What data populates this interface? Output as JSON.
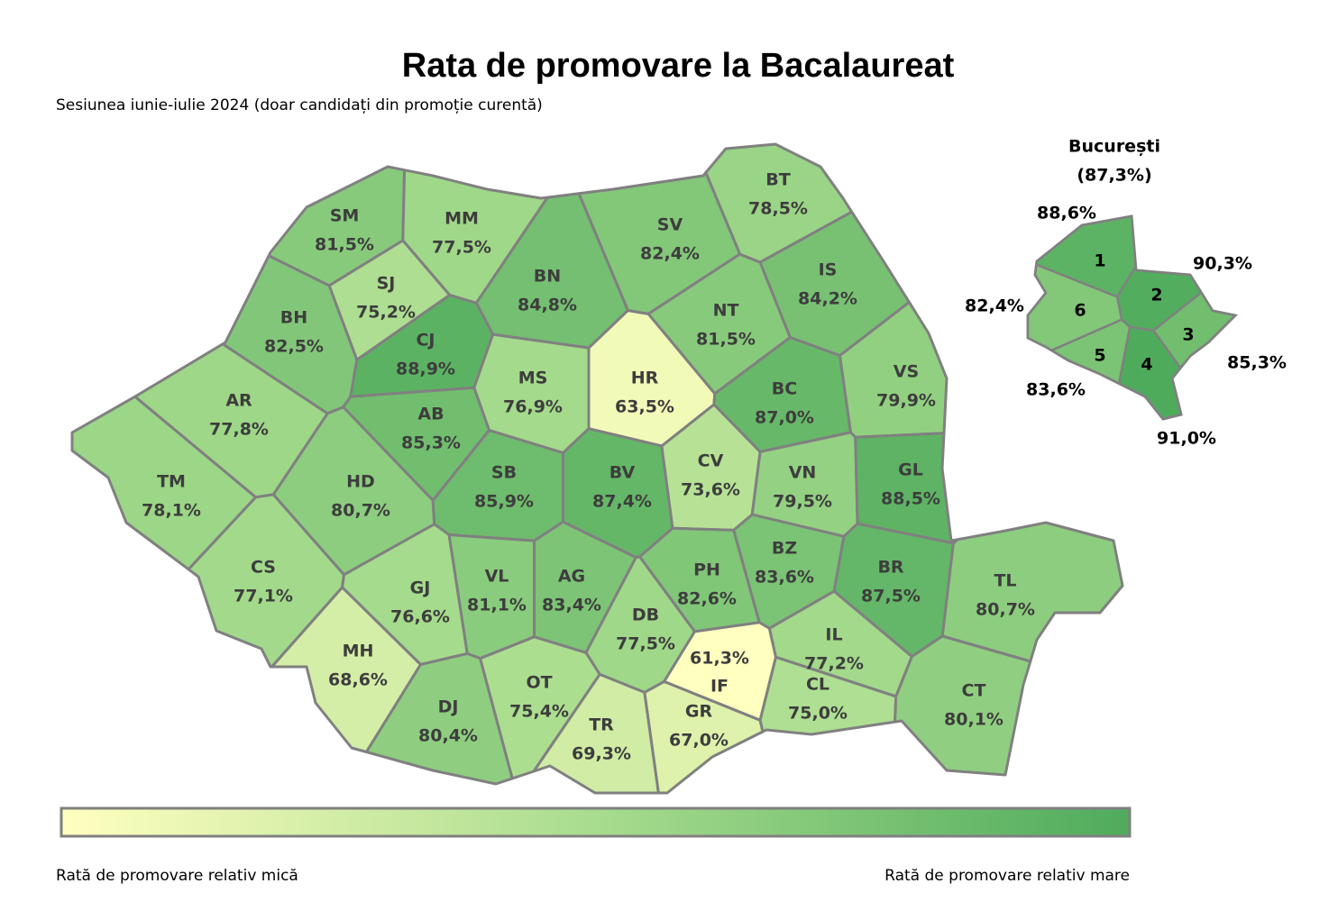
{
  "chart_data": {
    "type": "map",
    "title": "Rata de promovare la Bacalaureat",
    "subtitle": "Sesiunea iunie-iulie 2024 (doar candidați din promoție curentă)",
    "regions": [
      "SM",
      "MM",
      "BT",
      "SV",
      "SJ",
      "BN",
      "IS",
      "BH",
      "CJ",
      "NT",
      "MS",
      "HR",
      "BC",
      "VS",
      "AR",
      "AB",
      "TM",
      "HD",
      "SB",
      "BV",
      "CV",
      "VN",
      "GL",
      "CS",
      "GJ",
      "VL",
      "AG",
      "PH",
      "BZ",
      "BR",
      "TL",
      "DB",
      "MH",
      "IF",
      "IL",
      "DJ",
      "OT",
      "TR",
      "GR",
      "CL",
      "CT"
    ],
    "values": [
      81.5,
      77.5,
      78.5,
      82.4,
      75.2,
      84.8,
      84.2,
      82.5,
      88.9,
      81.5,
      76.9,
      63.5,
      87.0,
      79.9,
      77.8,
      85.3,
      78.1,
      80.7,
      85.9,
      87.4,
      73.6,
      79.5,
      88.5,
      77.1,
      76.6,
      81.1,
      83.4,
      82.6,
      83.6,
      87.5,
      80.7,
      77.5,
      68.6,
      61.3,
      77.2,
      80.4,
      75.4,
      69.3,
      67.0,
      75.0,
      80.1
    ],
    "value_labels": [
      "81,5%",
      "77,5%",
      "78,5%",
      "82,4%",
      "75,2%",
      "84,8%",
      "84,2%",
      "82,5%",
      "88,9%",
      "81,5%",
      "76,9%",
      "63,5%",
      "87,0%",
      "79,9%",
      "77,8%",
      "85,3%",
      "78,1%",
      "80,7%",
      "85,9%",
      "87,4%",
      "73,6%",
      "79,5%",
      "88,5%",
      "77,1%",
      "76,6%",
      "81,1%",
      "83,4%",
      "82,6%",
      "83,6%",
      "87,5%",
      "80,7%",
      "77,5%",
      "68,6%",
      "61,3%",
      "77,2%",
      "80,4%",
      "75,4%",
      "69,3%",
      "67,0%",
      "75,0%",
      "80,1%"
    ],
    "bucharest": {
      "title": "București",
      "value": 87.3,
      "value_label": "(87,3%)",
      "sectors": [
        "1",
        "2",
        "3",
        "4",
        "5",
        "6"
      ],
      "values": [
        88.6,
        90.3,
        85.3,
        91.0,
        83.6,
        82.4
      ],
      "value_labels": [
        "88,6%",
        "90,3%",
        "85,3%",
        "91,0%",
        "83,6%",
        "82,4%"
      ]
    },
    "color_scale": [
      "#ffffbf",
      "#a8dc8e",
      "#4fab5c"
    ],
    "legend_low": "Rată de promovare relativ mică",
    "legend_high": "Rată de promovare relativ mare"
  }
}
